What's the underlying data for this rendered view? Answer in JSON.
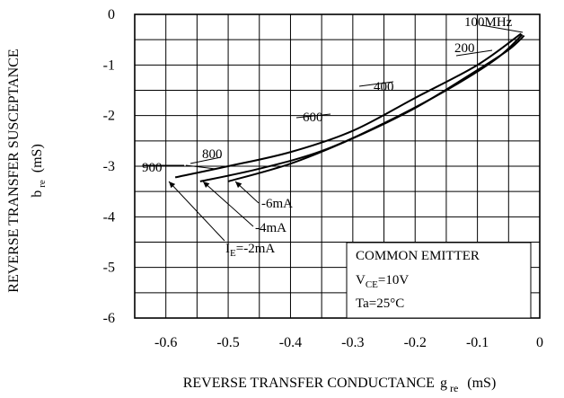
{
  "chart_data": {
    "type": "line",
    "xlabel": "REVERSE TRANSFER CONDUCTANCE",
    "xlabel_symbol": "g",
    "xlabel_sub": "re",
    "xlabel_unit": "(mS)",
    "ylabel_line1": "REVERSE TRANSFER SUSCEPTANCE",
    "ylabel_symbol": "b",
    "ylabel_sub": "re",
    "ylabel_unit": "(mS)",
    "xlim": [
      -0.65,
      0
    ],
    "ylim": [
      -6,
      0
    ],
    "grid": true,
    "x_ticks": [
      -0.6,
      -0.5,
      -0.4,
      -0.3,
      -0.2,
      -0.1,
      0
    ],
    "x_tick_labels": [
      "-0.6",
      "-0.5",
      "-0.4",
      "-0.3",
      "-0.2",
      "-0.1",
      "0"
    ],
    "y_ticks": [
      0,
      -1,
      -2,
      -3,
      -4,
      -5,
      -6
    ],
    "y_tick_labels": [
      "0",
      "-1",
      "-2",
      "-3",
      "-4",
      "-5",
      "-6"
    ],
    "series": [
      {
        "name": "IE=-2mA",
        "x": [
          -0.585,
          -0.5,
          -0.4,
          -0.3,
          -0.2,
          -0.1,
          -0.03
        ],
        "y": [
          -3.22,
          -3.0,
          -2.72,
          -2.3,
          -1.65,
          -1.0,
          -0.38
        ]
      },
      {
        "name": "-4mA",
        "x": [
          -0.545,
          -0.45,
          -0.35,
          -0.25,
          -0.15,
          -0.07,
          -0.028
        ],
        "y": [
          -3.3,
          -3.05,
          -2.7,
          -2.15,
          -1.5,
          -0.88,
          -0.4
        ]
      },
      {
        "name": "-6mA",
        "x": [
          -0.5,
          -0.4,
          -0.3,
          -0.2,
          -0.1,
          -0.05,
          -0.025
        ],
        "y": [
          -3.3,
          -2.95,
          -2.45,
          -1.85,
          -1.1,
          -0.7,
          -0.42
        ]
      }
    ],
    "curve_labels": {
      "ie_prefix": "I",
      "ie_sub": "E",
      "ie_value": "=-2mA",
      "minus4": "-4mA",
      "minus6": "-6mA"
    },
    "frequency_labels": [
      "100MHz",
      "200",
      "400",
      "600",
      "800",
      "900"
    ],
    "conditions": {
      "line1": "COMMON EMITTER",
      "vce_prefix": "V",
      "vce_sub": "CE",
      "vce_value": "=10V",
      "ta": "Ta=25°C"
    }
  }
}
